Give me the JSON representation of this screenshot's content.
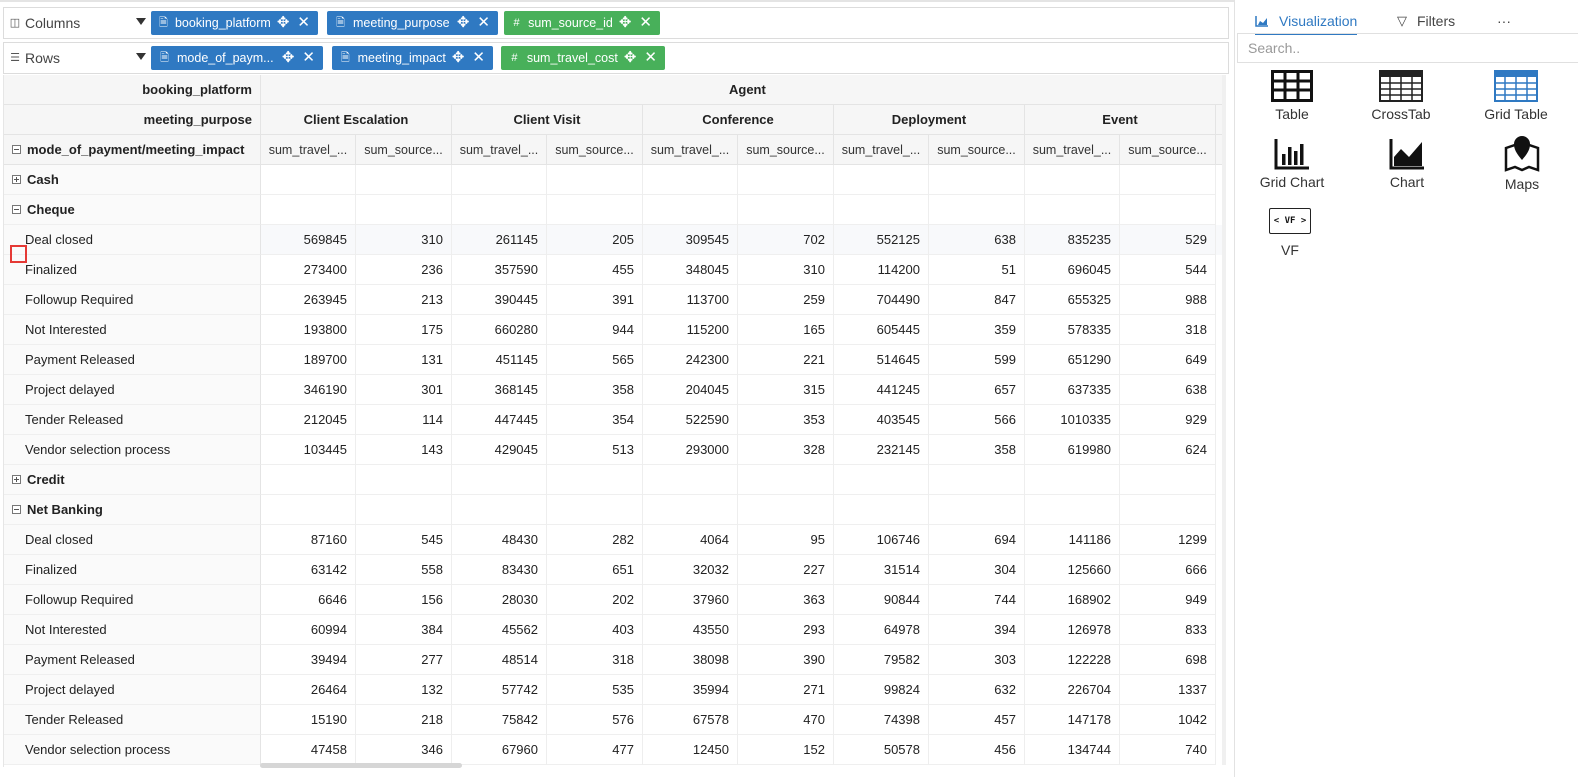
{
  "shelves": {
    "columns": {
      "label": "Columns",
      "pills": [
        {
          "label": "booking_platform",
          "type": "dimension"
        },
        {
          "label": "meeting_purpose",
          "type": "dimension"
        },
        {
          "label": "sum_source_id",
          "type": "measure"
        }
      ]
    },
    "rows": {
      "label": "Rows",
      "pills": [
        {
          "label": "mode_of_paym...",
          "type": "dimension"
        },
        {
          "label": "meeting_impact",
          "type": "dimension"
        },
        {
          "label": "sum_travel_cost",
          "type": "measure"
        }
      ]
    }
  },
  "pivot": {
    "header_row1_label": "booking_platform",
    "header_row2_label": "meeting_purpose",
    "header_row3_label": "mode_of_payment/meeting_impact",
    "platform": "Agent",
    "purposes": [
      "Client Escalation",
      "Client Visit",
      "Conference",
      "Deployment",
      "Event"
    ],
    "measure_headers": [
      "sum_travel_...",
      "sum_source..."
    ],
    "rows": [
      {
        "label": "Cash",
        "group": true,
        "collapsed": true
      },
      {
        "label": "Cheque",
        "group": true,
        "collapsed": false
      },
      {
        "label": "Deal closed",
        "values": [
          "569845",
          "310",
          "261145",
          "205",
          "309545",
          "702",
          "552125",
          "638",
          "835235",
          "529"
        ]
      },
      {
        "label": "Finalized",
        "values": [
          "273400",
          "236",
          "357590",
          "455",
          "348045",
          "310",
          "114200",
          "51",
          "696045",
          "544"
        ]
      },
      {
        "label": "Followup Required",
        "values": [
          "263945",
          "213",
          "390445",
          "391",
          "113700",
          "259",
          "704490",
          "847",
          "655325",
          "988"
        ]
      },
      {
        "label": "Not Interested",
        "values": [
          "193800",
          "175",
          "660280",
          "944",
          "115200",
          "165",
          "605445",
          "359",
          "578335",
          "318"
        ]
      },
      {
        "label": "Payment Released",
        "values": [
          "189700",
          "131",
          "451145",
          "565",
          "242300",
          "221",
          "514645",
          "599",
          "651290",
          "649"
        ]
      },
      {
        "label": "Project delayed",
        "values": [
          "346190",
          "301",
          "368145",
          "358",
          "204045",
          "315",
          "441245",
          "657",
          "637335",
          "638"
        ]
      },
      {
        "label": "Tender Released",
        "values": [
          "212045",
          "114",
          "447445",
          "354",
          "522590",
          "353",
          "403545",
          "566",
          "1010335",
          "929"
        ]
      },
      {
        "label": "Vendor selection process",
        "values": [
          "103445",
          "143",
          "429045",
          "513",
          "293000",
          "328",
          "232145",
          "358",
          "619980",
          "624"
        ]
      },
      {
        "label": "Credit",
        "group": true,
        "collapsed": true
      },
      {
        "label": "Net Banking",
        "group": true,
        "collapsed": false
      },
      {
        "label": "Deal closed",
        "values": [
          "87160",
          "545",
          "48430",
          "282",
          "4064",
          "95",
          "106746",
          "694",
          "141186",
          "1299"
        ]
      },
      {
        "label": "Finalized",
        "values": [
          "63142",
          "558",
          "83430",
          "651",
          "32032",
          "227",
          "31514",
          "304",
          "125660",
          "666"
        ]
      },
      {
        "label": "Followup Required",
        "values": [
          "6646",
          "156",
          "28030",
          "202",
          "37960",
          "363",
          "90844",
          "744",
          "168902",
          "949"
        ]
      },
      {
        "label": "Not Interested",
        "values": [
          "60994",
          "384",
          "45562",
          "403",
          "43550",
          "293",
          "64978",
          "394",
          "126978",
          "833"
        ]
      },
      {
        "label": "Payment Released",
        "values": [
          "39494",
          "277",
          "48514",
          "318",
          "38098",
          "390",
          "79582",
          "303",
          "122228",
          "698"
        ]
      },
      {
        "label": "Project delayed",
        "values": [
          "26464",
          "132",
          "57742",
          "535",
          "35994",
          "271",
          "99824",
          "632",
          "226704",
          "1337"
        ]
      },
      {
        "label": "Tender Released",
        "values": [
          "15190",
          "218",
          "75842",
          "576",
          "67578",
          "470",
          "74398",
          "457",
          "147178",
          "1042"
        ]
      },
      {
        "label": "Vendor selection process",
        "values": [
          "47458",
          "346",
          "67960",
          "477",
          "12450",
          "152",
          "50578",
          "456",
          "134744",
          "740"
        ]
      }
    ]
  },
  "panel": {
    "tabs": {
      "visualization": "Visualization",
      "filters": "Filters",
      "more": "···"
    },
    "search_placeholder": "Search..",
    "items": [
      {
        "label": "Table",
        "icon": "table-icon"
      },
      {
        "label": "CrossTab",
        "icon": "crosstab-icon"
      },
      {
        "label": "Grid Table",
        "icon": "grid-table-icon"
      },
      {
        "label": "Grid Chart",
        "icon": "grid-chart-icon"
      },
      {
        "label": "Chart",
        "icon": "area-chart-icon"
      },
      {
        "label": "Maps",
        "icon": "map-pin-icon"
      },
      {
        "label": "VF",
        "icon": "vf-icon",
        "badge": "< VF >"
      }
    ]
  },
  "colors": {
    "dimension_pill": "#2f79c2",
    "measure_pill": "#48b05a",
    "highlight": "#e53935"
  }
}
